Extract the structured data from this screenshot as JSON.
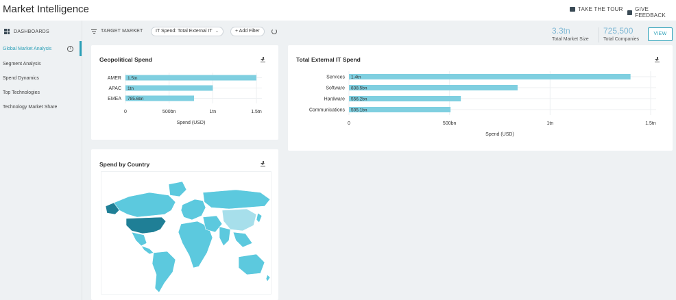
{
  "header": {
    "title": "Market Intelligence",
    "actions": [
      {
        "label": "TAKE THE TOUR",
        "icon": "tour-icon"
      },
      {
        "label": "GIVE FEEDBACK",
        "icon": "feedback-icon"
      }
    ]
  },
  "sidebar": {
    "heading": "DASHBOARDS",
    "heading_icon": "dashboard-grid-icon",
    "items": [
      {
        "label": "Global Market Analysis",
        "active": true
      },
      {
        "label": "Segment Analysis"
      },
      {
        "label": "Spend Dynamics"
      },
      {
        "label": "Top Technologies"
      },
      {
        "label": "Technology Market Share"
      }
    ],
    "accent_color": "#2a9fb7"
  },
  "filters": {
    "label": "TARGET MARKET",
    "chip_value": "IT Spend: Total External IT",
    "add_filter": "+ Add Filter"
  },
  "kpis": [
    {
      "value": "3.3tn",
      "label": "Total Market Size"
    },
    {
      "value": "725,500",
      "label": "Total Companies"
    }
  ],
  "view_button": "VIEW",
  "cards": {
    "geopolitical": {
      "title": "Geopolitical Spend"
    },
    "total_it": {
      "title": "Total External IT Spend"
    },
    "country": {
      "title": "Spend by Country"
    }
  },
  "chart_data": [
    {
      "type": "bar",
      "orientation": "horizontal",
      "title": "Geopolitical Spend",
      "categories": [
        "AMER",
        "APAC",
        "EMEA"
      ],
      "values": [
        1500000000000,
        1000000000000,
        785600000000
      ],
      "data_labels": [
        "1.5tn",
        "1tn",
        "785.6bn"
      ],
      "xlabel": "Spend (USD)",
      "xlim": [
        0,
        1500000000000
      ],
      "ticks": [
        0,
        500000000000,
        1000000000000,
        1500000000000
      ],
      "tick_labels": [
        "0",
        "500bn",
        "1tn",
        "1.5tn"
      ],
      "bar_color": "#7fcfe0",
      "grid": true
    },
    {
      "type": "bar",
      "orientation": "horizontal",
      "title": "Total External IT Spend",
      "categories": [
        "Services",
        "Software",
        "Hardware",
        "Communications"
      ],
      "values": [
        1400000000000,
        838500000000,
        556200000000,
        505100000000
      ],
      "data_labels": [
        "1.4tn",
        "838.5bn",
        "556.2bn",
        "505.1bn"
      ],
      "xlabel": "Spend (USD)",
      "xlim": [
        0,
        1500000000000
      ],
      "ticks": [
        0,
        500000000000,
        1000000000000,
        1500000000000
      ],
      "tick_labels": [
        "0",
        "500bn",
        "1tn",
        "1.5tn"
      ],
      "bar_color": "#7fcfe0",
      "grid": true
    }
  ],
  "map": {
    "highlight_color": "#1f7f96",
    "base_color": "#5cc9de",
    "light_color": "#a7dfeb"
  }
}
